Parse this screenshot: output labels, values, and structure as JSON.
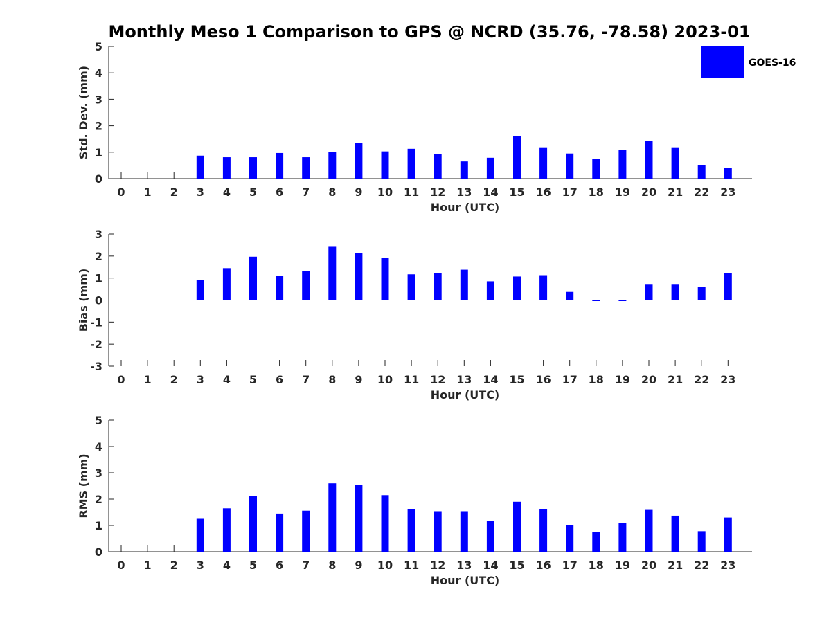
{
  "chart_data": [
    {
      "type": "bar",
      "title": "Monthly Meso 1 Comparison to GPS @ NCRD (35.76, -78.58) 2023-01",
      "xlabel": "Hour (UTC)",
      "ylabel": "Std. Dev. (mm)",
      "ylim": [
        0,
        5
      ],
      "yticks": [
        "0",
        "1",
        "2",
        "3",
        "4",
        "5"
      ],
      "categories": [
        "0",
        "1",
        "2",
        "3",
        "4",
        "5",
        "6",
        "7",
        "8",
        "9",
        "10",
        "11",
        "12",
        "13",
        "14",
        "15",
        "16",
        "17",
        "18",
        "19",
        "20",
        "21",
        "22",
        "23"
      ],
      "legend": "top-right",
      "series": [
        {
          "name": "GOES-16",
          "color": "#0000ff",
          "values": [
            null,
            null,
            null,
            0.87,
            0.81,
            0.81,
            0.97,
            0.81,
            1.0,
            1.36,
            1.03,
            1.13,
            0.93,
            0.65,
            0.79,
            1.6,
            1.16,
            0.95,
            0.75,
            1.08,
            1.42,
            1.16,
            0.5,
            0.4
          ]
        }
      ]
    },
    {
      "type": "bar",
      "title": "",
      "xlabel": "Hour (UTC)",
      "ylabel": "Bias (mm)",
      "ylim": [
        -3,
        3
      ],
      "yticks": [
        "-3",
        "-2",
        "-1",
        "0",
        "1",
        "2",
        "3"
      ],
      "categories": [
        "0",
        "1",
        "2",
        "3",
        "4",
        "5",
        "6",
        "7",
        "8",
        "9",
        "10",
        "11",
        "12",
        "13",
        "14",
        "15",
        "16",
        "17",
        "18",
        "19",
        "20",
        "21",
        "22",
        "23"
      ],
      "series": [
        {
          "name": "GOES-16",
          "color": "#0000ff",
          "values": [
            null,
            null,
            null,
            0.9,
            1.45,
            1.97,
            1.1,
            1.33,
            2.42,
            2.13,
            1.92,
            1.17,
            1.22,
            1.38,
            0.85,
            1.07,
            1.13,
            0.37,
            -0.04,
            -0.04,
            0.73,
            0.73,
            0.6,
            1.22
          ]
        }
      ]
    },
    {
      "type": "bar",
      "title": "",
      "xlabel": "Hour (UTC)",
      "ylabel": "RMS (mm)",
      "ylim": [
        0,
        5
      ],
      "yticks": [
        "0",
        "1",
        "2",
        "3",
        "4",
        "5"
      ],
      "categories": [
        "0",
        "1",
        "2",
        "3",
        "4",
        "5",
        "6",
        "7",
        "8",
        "9",
        "10",
        "11",
        "12",
        "13",
        "14",
        "15",
        "16",
        "17",
        "18",
        "19",
        "20",
        "21",
        "22",
        "23"
      ],
      "series": [
        {
          "name": "GOES-16",
          "color": "#0000ff",
          "values": [
            null,
            null,
            null,
            1.25,
            1.65,
            2.13,
            1.45,
            1.56,
            2.6,
            2.55,
            2.15,
            1.61,
            1.54,
            1.54,
            1.17,
            1.9,
            1.61,
            1.01,
            0.75,
            1.09,
            1.59,
            1.37,
            0.78,
            1.3
          ]
        }
      ]
    }
  ]
}
